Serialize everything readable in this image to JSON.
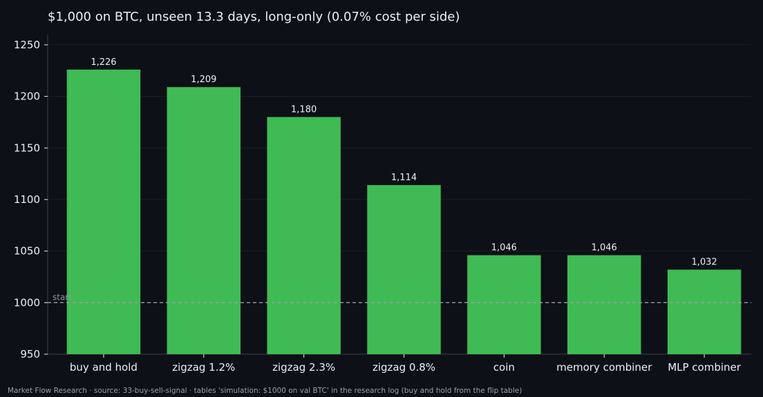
{
  "chart_data": {
    "type": "bar",
    "title": "$1,000 on BTC, unseen 13.3 days, long-only (0.07% cost per side)",
    "xlabel": "",
    "ylabel": "",
    "categories": [
      "buy and hold",
      "zigzag 1.2%",
      "zigzag 2.3%",
      "zigzag 0.8%",
      "coin",
      "memory combiner",
      "MLP combiner"
    ],
    "values": [
      1226,
      1209,
      1180,
      1114,
      1046,
      1046,
      1032
    ],
    "value_labels": [
      "1,226",
      "1,209",
      "1,180",
      "1,114",
      "1,046",
      "1,046",
      "1,032"
    ],
    "ylim": [
      950,
      1260
    ],
    "yticks": [
      950,
      1000,
      1050,
      1100,
      1150,
      1200,
      1250
    ],
    "reference_line": {
      "value": 1000,
      "label": "start",
      "style": "dashed"
    },
    "grid": true,
    "legend": "none",
    "colors": {
      "bar": "#40ba54",
      "background": "#0d1017",
      "text": "#eceff4",
      "axis": "#3a3f47",
      "grid": "#1a1e26",
      "reference": "#9aa0a8"
    }
  },
  "footer": {
    "note": "Market Flow Research · source: 33-buy-sell-signal · tables 'simulation: $1000 on val BTC' in the research log (buy and hold from the flip table)"
  }
}
